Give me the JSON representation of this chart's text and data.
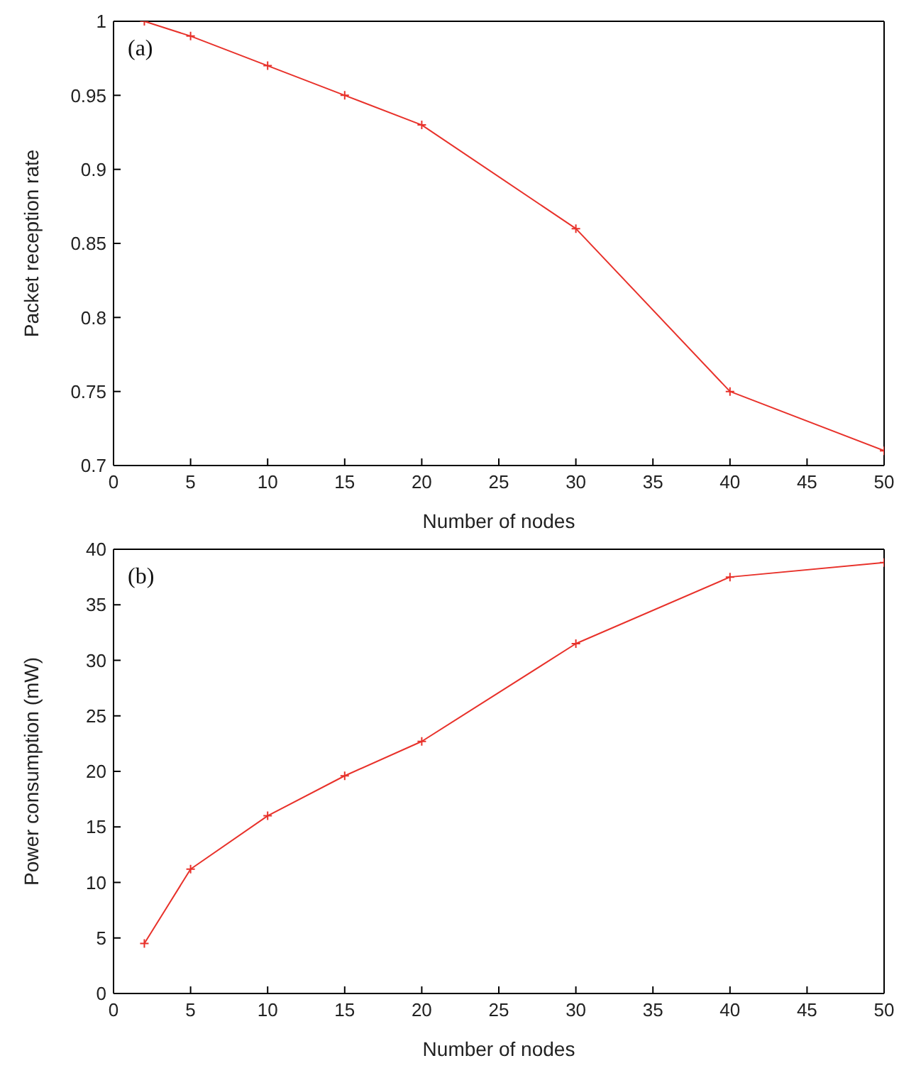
{
  "chart_data": [
    {
      "type": "line",
      "xlabel": "Number of nodes",
      "ylabel": "Packet reception rate",
      "annotations": [
        "(a)"
      ],
      "x": [
        2,
        5,
        10,
        15,
        20,
        30,
        40,
        50
      ],
      "series": [
        {
          "color": "#e8312a",
          "values": [
            1.0,
            0.99,
            0.97,
            0.95,
            0.93,
            0.86,
            0.75,
            0.71
          ]
        }
      ],
      "xlim": [
        0,
        50
      ],
      "xticks": [
        0,
        5,
        10,
        15,
        20,
        25,
        30,
        35,
        40,
        45,
        50
      ],
      "ylim": [
        0.7,
        1
      ],
      "yticks": [
        0.7,
        0.75,
        0.8,
        0.85,
        0.9,
        0.95,
        1
      ],
      "grid": false,
      "legend": false,
      "marker": "cross",
      "line_style": "solid"
    },
    {
      "type": "line",
      "xlabel": "Number of nodes",
      "ylabel": "Power consumption (mW)",
      "annotations": [
        "(b)"
      ],
      "x": [
        2,
        5,
        10,
        15,
        20,
        30,
        40,
        50
      ],
      "series": [
        {
          "color": "#e8312a",
          "values": [
            4.5,
            11.2,
            16,
            19.6,
            22.7,
            31.5,
            37.5,
            38.8
          ]
        }
      ],
      "xlim": [
        0,
        50
      ],
      "xticks": [
        0,
        5,
        10,
        15,
        20,
        25,
        30,
        35,
        40,
        45,
        50
      ],
      "ylim": [
        0,
        40
      ],
      "yticks": [
        0,
        5,
        10,
        15,
        20,
        25,
        30,
        35,
        40
      ],
      "grid": false,
      "legend": false,
      "marker": "cross",
      "line_style": "solid"
    }
  ]
}
